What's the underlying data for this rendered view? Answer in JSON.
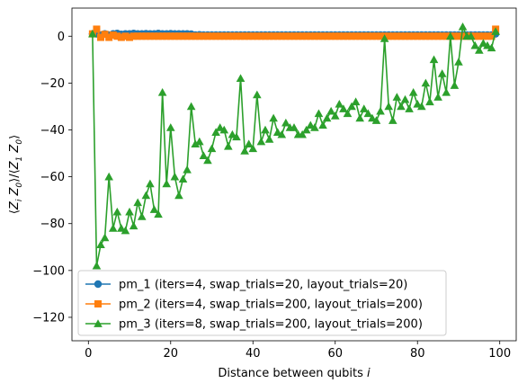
{
  "chart_data": {
    "type": "line",
    "xlabel": "Distance between qubits i",
    "ylabel": "⟨Z_i Z_0⟩/⟨Z_1 Z_0⟩",
    "xlim": [
      -4,
      104
    ],
    "ylim": [
      -130,
      12
    ],
    "xticks": [
      0,
      20,
      40,
      60,
      80,
      100
    ],
    "yticks": [
      0,
      -20,
      -40,
      -60,
      -80,
      -100,
      -120
    ],
    "grid": false,
    "legend_position": "lower-left",
    "series": [
      {
        "name": "pm_1 (iters=4, swap_trials=20, layout_trials=20)",
        "color": "#1f77b4",
        "marker": "circle",
        "x": [
          1,
          2,
          3,
          4,
          5,
          6,
          7,
          8,
          9,
          10,
          11,
          12,
          13,
          14,
          15,
          16,
          17,
          18,
          19,
          20,
          21,
          22,
          23,
          24,
          25,
          26,
          27,
          28,
          29,
          30,
          31,
          32,
          33,
          34,
          35,
          36,
          37,
          38,
          39,
          40,
          41,
          42,
          43,
          44,
          45,
          46,
          47,
          48,
          49,
          50,
          51,
          52,
          53,
          54,
          55,
          56,
          57,
          58,
          59,
          60,
          61,
          62,
          63,
          64,
          65,
          66,
          67,
          68,
          69,
          70,
          71,
          72,
          73,
          74,
          75,
          76,
          77,
          78,
          79,
          80,
          81,
          82,
          83,
          84,
          85,
          86,
          87,
          88,
          89,
          90,
          91,
          92,
          93,
          94,
          95,
          96,
          97,
          98,
          99
        ],
        "y": [
          1,
          1,
          0.5,
          1,
          0.5,
          1,
          1.2,
          0.8,
          1,
          1,
          1.2,
          1,
          1,
          1.1,
          1,
          1,
          1.2,
          1,
          1,
          1.1,
          1,
          1,
          1,
          1,
          0.9,
          0.5,
          0.6,
          0.5,
          0.5,
          0.5,
          0.5,
          0.5,
          0.5,
          0.5,
          0.5,
          0.5,
          0.5,
          0.5,
          0.5,
          0.5,
          0.5,
          0.5,
          0.5,
          0.5,
          0.5,
          0.5,
          0.5,
          0.5,
          0.5,
          0.5,
          0.5,
          0.5,
          0.5,
          0.5,
          0.5,
          0.5,
          0.5,
          0.5,
          0.5,
          0.5,
          0.5,
          0.5,
          0.5,
          0.5,
          0.5,
          0.5,
          0.5,
          0.5,
          0.5,
          0.5,
          0.5,
          0.5,
          0.5,
          0.5,
          0.5,
          0.5,
          0.5,
          0.5,
          0.5,
          0.5,
          0.5,
          0.5,
          0.5,
          0.5,
          0.5,
          0.5,
          0.5,
          0.5,
          0.5,
          0.5,
          0.5,
          0.5,
          0.5,
          0.5,
          0.5,
          0.5,
          0.5,
          0.5,
          1
        ]
      },
      {
        "name": "pm_2 (iters=4, swap_trials=200, layout_trials=200)",
        "color": "#ff7f0e",
        "marker": "square",
        "x": [
          1,
          2,
          3,
          4,
          5,
          6,
          7,
          8,
          9,
          10,
          11,
          12,
          13,
          14,
          15,
          16,
          17,
          18,
          19,
          20,
          21,
          22,
          23,
          24,
          25,
          26,
          27,
          28,
          29,
          30,
          31,
          32,
          33,
          34,
          35,
          36,
          37,
          38,
          39,
          40,
          41,
          42,
          43,
          44,
          45,
          46,
          47,
          48,
          49,
          50,
          51,
          52,
          53,
          54,
          55,
          56,
          57,
          58,
          59,
          60,
          61,
          62,
          63,
          64,
          65,
          66,
          67,
          68,
          69,
          70,
          71,
          72,
          73,
          74,
          75,
          76,
          77,
          78,
          79,
          80,
          81,
          82,
          83,
          84,
          85,
          86,
          87,
          88,
          89,
          90,
          91,
          92,
          93,
          94,
          95,
          96,
          97,
          98,
          99
        ],
        "y": [
          1,
          3,
          -0.5,
          0.8,
          -0.5,
          0.5,
          0,
          -0.5,
          0,
          -0.5,
          0,
          0,
          0,
          0,
          0,
          0,
          0,
          0,
          0,
          0,
          0,
          0,
          0,
          0,
          0,
          0,
          0,
          0,
          0,
          0,
          0,
          0,
          0,
          0,
          0,
          0,
          0,
          0,
          0,
          0,
          0,
          0,
          0,
          0,
          0,
          0,
          0,
          0,
          0,
          0,
          0,
          0,
          0,
          0,
          0,
          0,
          0,
          0,
          0,
          0,
          0,
          0,
          0,
          0,
          0,
          0,
          0,
          0,
          0,
          0,
          0,
          0,
          0,
          0,
          0,
          0,
          0,
          0,
          0,
          0,
          0,
          0,
          0,
          0,
          0,
          0,
          0,
          0,
          0,
          0,
          0,
          0,
          0,
          0,
          0,
          0,
          0,
          0,
          3
        ]
      },
      {
        "name": "pm_3 (iters=8, swap_trials=200, layout_trials=200)",
        "color": "#2ca02c",
        "marker": "triangle",
        "x": [
          1,
          2,
          3,
          4,
          5,
          6,
          7,
          8,
          9,
          10,
          11,
          12,
          13,
          14,
          15,
          16,
          17,
          18,
          19,
          20,
          21,
          22,
          23,
          24,
          25,
          26,
          27,
          28,
          29,
          30,
          31,
          32,
          33,
          34,
          35,
          36,
          37,
          38,
          39,
          40,
          41,
          42,
          43,
          44,
          45,
          46,
          47,
          48,
          49,
          50,
          51,
          52,
          53,
          54,
          55,
          56,
          57,
          58,
          59,
          60,
          61,
          62,
          63,
          64,
          65,
          66,
          67,
          68,
          69,
          70,
          71,
          72,
          73,
          74,
          75,
          76,
          77,
          78,
          79,
          80,
          81,
          82,
          83,
          84,
          85,
          86,
          87,
          88,
          89,
          90,
          91,
          92,
          93,
          94,
          95,
          96,
          97,
          98,
          99
        ],
        "y": [
          1,
          -98,
          -89,
          -86,
          -60,
          -82,
          -75,
          -82,
          -83,
          -75,
          -81,
          -71,
          -77,
          -68,
          -63,
          -74,
          -76,
          -24,
          -63,
          -39,
          -60,
          -68,
          -61,
          -57,
          -30,
          -46,
          -45,
          -51,
          -53,
          -48,
          -41,
          -39,
          -40,
          -47,
          -42,
          -43,
          -18,
          -49,
          -46,
          -48,
          -25,
          -45,
          -40,
          -44,
          -35,
          -41,
          -42,
          -37,
          -39,
          -39,
          -42,
          -42,
          -40,
          -38,
          -39,
          -33,
          -38,
          -35,
          -32,
          -34,
          -29,
          -31,
          -33,
          -30,
          -28,
          -35,
          -31,
          -33,
          -35,
          -36,
          -32,
          -1,
          -30,
          -36,
          -26,
          -30,
          -27,
          -31,
          -24,
          -29,
          -30,
          -20,
          -28,
          -10,
          -26,
          -16,
          -24,
          0,
          -21,
          -11,
          4,
          0,
          0,
          -4,
          -6,
          -3,
          -4,
          -5,
          2
        ]
      }
    ]
  }
}
